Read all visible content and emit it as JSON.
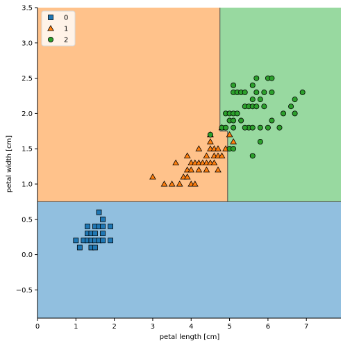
{
  "chart_data": {
    "type": "scatter",
    "title": "",
    "xlabel": "petal length [cm]",
    "ylabel": "petal width [cm]",
    "xlim": [
      0,
      7.9
    ],
    "ylim": [
      -0.9,
      3.5
    ],
    "xticks": [
      0,
      1,
      2,
      3,
      4,
      5,
      6,
      7
    ],
    "yticks": [
      -0.5,
      0.0,
      0.5,
      1.0,
      1.5,
      2.0,
      2.5,
      3.0,
      3.5
    ],
    "ytick_labels": [
      "−0.5",
      "0.0",
      "0.5",
      "1.0",
      "1.5",
      "2.0",
      "2.5",
      "3.0",
      "3.5"
    ],
    "grid": false,
    "legend_position": "top-left",
    "regions": [
      {
        "class": "0",
        "x": [
          0,
          7.9
        ],
        "y": [
          -0.9,
          0.75
        ],
        "color": "#91bfdf"
      },
      {
        "class": "1",
        "x": [
          0,
          4.75
        ],
        "y": [
          0.75,
          3.5
        ],
        "color": "#ffc28b"
      },
      {
        "class": "1",
        "x": [
          4.75,
          4.95
        ],
        "y": [
          0.75,
          1.75
        ],
        "color": "#ffc28b"
      },
      {
        "class": "2",
        "x": [
          4.75,
          7.9
        ],
        "y": [
          1.75,
          3.5
        ],
        "color": "#98d9a0"
      },
      {
        "class": "2",
        "x": [
          4.95,
          7.9
        ],
        "y": [
          0.75,
          1.75
        ],
        "color": "#98d9a0"
      }
    ],
    "series": [
      {
        "name": "0",
        "marker": "square",
        "color": "#1f77b4",
        "points": [
          [
            1.0,
            0.2
          ],
          [
            1.1,
            0.1
          ],
          [
            1.2,
            0.2
          ],
          [
            1.3,
            0.2
          ],
          [
            1.3,
            0.3
          ],
          [
            1.3,
            0.4
          ],
          [
            1.4,
            0.1
          ],
          [
            1.4,
            0.2
          ],
          [
            1.4,
            0.3
          ],
          [
            1.5,
            0.1
          ],
          [
            1.5,
            0.2
          ],
          [
            1.5,
            0.3
          ],
          [
            1.5,
            0.4
          ],
          [
            1.6,
            0.2
          ],
          [
            1.6,
            0.4
          ],
          [
            1.6,
            0.6
          ],
          [
            1.7,
            0.2
          ],
          [
            1.7,
            0.3
          ],
          [
            1.7,
            0.4
          ],
          [
            1.7,
            0.5
          ],
          [
            1.9,
            0.2
          ],
          [
            1.9,
            0.4
          ]
        ]
      },
      {
        "name": "1",
        "marker": "triangle",
        "color": "#ff7f0e",
        "points": [
          [
            3.0,
            1.1
          ],
          [
            3.3,
            1.0
          ],
          [
            3.5,
            1.0
          ],
          [
            3.6,
            1.3
          ],
          [
            3.7,
            1.0
          ],
          [
            3.8,
            1.1
          ],
          [
            3.9,
            1.1
          ],
          [
            3.9,
            1.2
          ],
          [
            3.9,
            1.4
          ],
          [
            4.0,
            1.0
          ],
          [
            4.0,
            1.2
          ],
          [
            4.0,
            1.3
          ],
          [
            4.1,
            1.0
          ],
          [
            4.1,
            1.3
          ],
          [
            4.2,
            1.2
          ],
          [
            4.2,
            1.3
          ],
          [
            4.2,
            1.5
          ],
          [
            4.3,
            1.3
          ],
          [
            4.4,
            1.2
          ],
          [
            4.4,
            1.3
          ],
          [
            4.4,
            1.4
          ],
          [
            4.5,
            1.3
          ],
          [
            4.5,
            1.5
          ],
          [
            4.5,
            1.7
          ],
          [
            4.6,
            1.3
          ],
          [
            4.6,
            1.4
          ],
          [
            4.6,
            1.5
          ],
          [
            4.7,
            1.2
          ],
          [
            4.7,
            1.4
          ],
          [
            4.7,
            1.5
          ],
          [
            4.8,
            1.8
          ],
          [
            4.9,
            1.5
          ],
          [
            5.0,
            1.7
          ],
          [
            5.1,
            1.6
          ],
          [
            4.5,
            1.6
          ],
          [
            4.8,
            1.4
          ]
        ]
      },
      {
        "name": "2",
        "marker": "circle",
        "color": "#2ca02c",
        "points": [
          [
            4.5,
            1.7
          ],
          [
            4.8,
            1.8
          ],
          [
            4.9,
            1.8
          ],
          [
            4.9,
            2.0
          ],
          [
            5.0,
            1.5
          ],
          [
            5.0,
            1.9
          ],
          [
            5.0,
            2.0
          ],
          [
            5.1,
            1.5
          ],
          [
            5.1,
            1.8
          ],
          [
            5.1,
            1.9
          ],
          [
            5.1,
            2.0
          ],
          [
            5.1,
            2.3
          ],
          [
            5.1,
            2.4
          ],
          [
            5.2,
            2.0
          ],
          [
            5.2,
            2.3
          ],
          [
            5.3,
            1.9
          ],
          [
            5.3,
            2.3
          ],
          [
            5.4,
            2.1
          ],
          [
            5.4,
            2.3
          ],
          [
            5.5,
            1.8
          ],
          [
            5.5,
            2.1
          ],
          [
            5.6,
            1.4
          ],
          [
            5.6,
            1.8
          ],
          [
            5.6,
            2.1
          ],
          [
            5.6,
            2.2
          ],
          [
            5.6,
            2.4
          ],
          [
            5.7,
            2.1
          ],
          [
            5.7,
            2.3
          ],
          [
            5.7,
            2.5
          ],
          [
            5.8,
            1.6
          ],
          [
            5.8,
            1.8
          ],
          [
            5.8,
            2.2
          ],
          [
            5.9,
            2.1
          ],
          [
            5.9,
            2.3
          ],
          [
            6.0,
            1.8
          ],
          [
            6.0,
            2.5
          ],
          [
            6.1,
            1.9
          ],
          [
            6.1,
            2.3
          ],
          [
            6.1,
            2.5
          ],
          [
            6.3,
            1.8
          ],
          [
            6.4,
            2.0
          ],
          [
            6.6,
            2.1
          ],
          [
            6.7,
            2.0
          ],
          [
            6.7,
            2.2
          ],
          [
            6.9,
            2.3
          ],
          [
            5.4,
            1.8
          ]
        ]
      }
    ]
  }
}
